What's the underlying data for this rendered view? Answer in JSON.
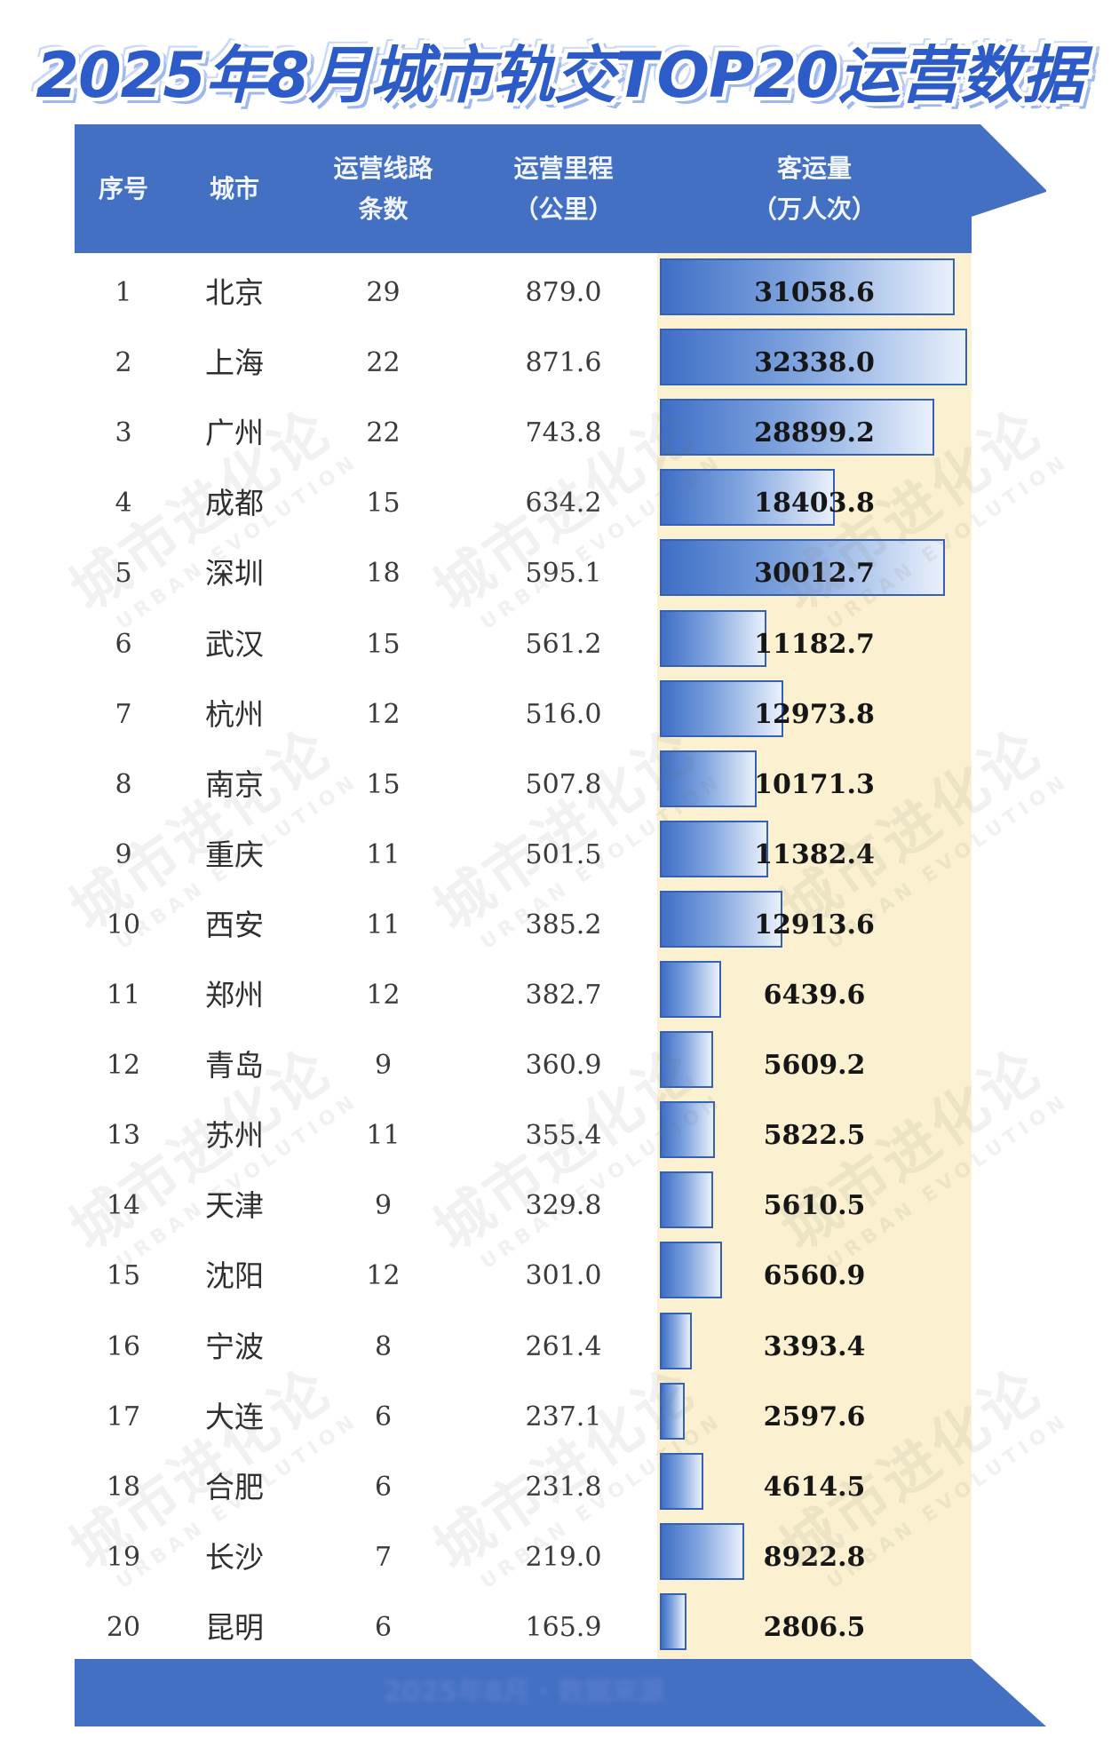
{
  "title": "2025年8月城市轨交TOP20运营数据",
  "header": {
    "rank": "序号",
    "city": "城市",
    "lines": "运营线路\n条数",
    "km": "运营里程\n（公里）",
    "ridership": "客运量\n（万人次）"
  },
  "footer": "2025年8月 · 数据来源",
  "watermark": {
    "cn": "城市进化论",
    "en": "URBAN EVOLUTION"
  },
  "colors": {
    "header": "#4470c4",
    "value_column": "#fbf1d0",
    "bar": "#3f6fc6"
  },
  "chart_data": {
    "type": "table",
    "title": "2025年8月城市轨交TOP20运营数据",
    "columns": [
      "序号",
      "城市",
      "运营线路条数",
      "运营里程（公里）",
      "客运量（万人次）"
    ],
    "bar_max": 32338.0,
    "rows": [
      {
        "rank": "1",
        "city": "北京",
        "lines": "29",
        "km": "879.0",
        "ridership": 31058.6,
        "ridership_label": "31058.6"
      },
      {
        "rank": "2",
        "city": "上海",
        "lines": "22",
        "km": "871.6",
        "ridership": 32338.0,
        "ridership_label": "32338.0"
      },
      {
        "rank": "3",
        "city": "广州",
        "lines": "22",
        "km": "743.8",
        "ridership": 28899.2,
        "ridership_label": "28899.2"
      },
      {
        "rank": "4",
        "city": "成都",
        "lines": "15",
        "km": "634.2",
        "ridership": 18403.8,
        "ridership_label": "18403.8"
      },
      {
        "rank": "5",
        "city": "深圳",
        "lines": "18",
        "km": "595.1",
        "ridership": 30012.7,
        "ridership_label": "30012.7"
      },
      {
        "rank": "6",
        "city": "武汉",
        "lines": "15",
        "km": "561.2",
        "ridership": 11182.7,
        "ridership_label": "11182.7"
      },
      {
        "rank": "7",
        "city": "杭州",
        "lines": "12",
        "km": "516.0",
        "ridership": 12973.8,
        "ridership_label": "12973.8"
      },
      {
        "rank": "8",
        "city": "南京",
        "lines": "15",
        "km": "507.8",
        "ridership": 10171.3,
        "ridership_label": "10171.3"
      },
      {
        "rank": "9",
        "city": "重庆",
        "lines": "11",
        "km": "501.5",
        "ridership": 11382.4,
        "ridership_label": "11382.4"
      },
      {
        "rank": "10",
        "city": "西安",
        "lines": "11",
        "km": "385.2",
        "ridership": 12913.6,
        "ridership_label": "12913.6"
      },
      {
        "rank": "11",
        "city": "郑州",
        "lines": "12",
        "km": "382.7",
        "ridership": 6439.6,
        "ridership_label": "6439.6"
      },
      {
        "rank": "12",
        "city": "青岛",
        "lines": "9",
        "km": "360.9",
        "ridership": 5609.2,
        "ridership_label": "5609.2"
      },
      {
        "rank": "13",
        "city": "苏州",
        "lines": "11",
        "km": "355.4",
        "ridership": 5822.5,
        "ridership_label": "5822.5"
      },
      {
        "rank": "14",
        "city": "天津",
        "lines": "9",
        "km": "329.8",
        "ridership": 5610.5,
        "ridership_label": "5610.5"
      },
      {
        "rank": "15",
        "city": "沈阳",
        "lines": "12",
        "km": "301.0",
        "ridership": 6560.9,
        "ridership_label": "6560.9"
      },
      {
        "rank": "16",
        "city": "宁波",
        "lines": "8",
        "km": "261.4",
        "ridership": 3393.4,
        "ridership_label": "3393.4"
      },
      {
        "rank": "17",
        "city": "大连",
        "lines": "6",
        "km": "237.1",
        "ridership": 2597.6,
        "ridership_label": "2597.6"
      },
      {
        "rank": "18",
        "city": "合肥",
        "lines": "6",
        "km": "231.8",
        "ridership": 4614.5,
        "ridership_label": "4614.5"
      },
      {
        "rank": "19",
        "city": "长沙",
        "lines": "7",
        "km": "219.0",
        "ridership": 8922.8,
        "ridership_label": "8922.8"
      },
      {
        "rank": "20",
        "city": "昆明",
        "lines": "6",
        "km": "165.9",
        "ridership": 2806.5,
        "ridership_label": "2806.5"
      }
    ]
  }
}
